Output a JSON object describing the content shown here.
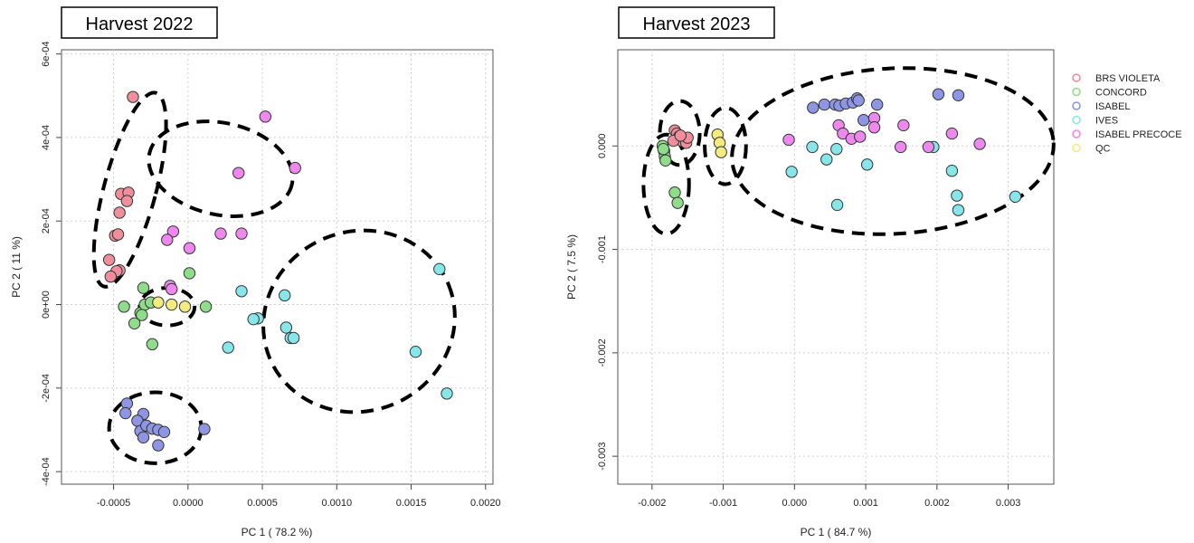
{
  "series_colors": {
    "BRS VIOLETA": "#f28e9b",
    "CONCORD": "#8fdc8a",
    "ISABEL": "#8e96e3",
    "IVES": "#87e6ea",
    "ISABEL PRECOCE": "#ee88ee",
    "QC": "#f3ea80"
  },
  "chart_data": [
    {
      "type": "scatter",
      "title": "Harvest 2022",
      "xlabel": "PC 1 ( 78.2 %)",
      "ylabel": "PC 2 ( 11 %)",
      "xlim": [
        -0.00085,
        0.00205
      ],
      "ylim": [
        -0.00043,
        0.00061
      ],
      "xticks": [
        -0.0005,
        0.0,
        0.0005,
        0.001,
        0.0015,
        0.002
      ],
      "xtick_labels": [
        "-0.0005",
        "0.0000",
        "0.0005",
        "0.0010",
        "0.0015",
        "0.0020"
      ],
      "yticks": [
        -0.0004,
        -0.0002,
        0.0,
        0.0002,
        0.0004,
        0.0006
      ],
      "ytick_labels": [
        "-4e-04",
        "-2e-04",
        "0e+00",
        "2e-04",
        "4e-04",
        "6e-04"
      ],
      "grid": true,
      "series": [
        {
          "name": "BRS VIOLETA",
          "points": [
            [
              -0.00037,
              0.000497
            ],
            [
              -0.00045,
              0.000265
            ],
            [
              -0.0004,
              0.000268
            ],
            [
              -0.00041,
              0.000248
            ],
            [
              -0.00046,
              0.00022
            ],
            [
              -0.00049,
              0.000165
            ],
            [
              -0.00047,
              0.000168
            ],
            [
              -0.00053,
              0.000107
            ],
            [
              -0.00046,
              8.2e-05
            ],
            [
              -0.00048,
              8e-05
            ],
            [
              -0.00052,
              6.7e-05
            ]
          ]
        },
        {
          "name": "CONCORD",
          "points": [
            [
              -0.0003,
              4e-05
            ],
            [
              -0.00043,
              -5e-06
            ],
            [
              -0.00032,
              -2e-05
            ],
            [
              -0.00029,
              0.0
            ],
            [
              -0.00031,
              -2.5e-05
            ],
            [
              -0.00036,
              -4.5e-05
            ],
            [
              -0.00025,
              5e-06
            ],
            [
              -0.00024,
              -9.5e-05
            ],
            [
              0.00012,
              -5e-06
            ],
            [
              1e-05,
              7.5e-05
            ]
          ]
        },
        {
          "name": "ISABEL",
          "points": [
            [
              -0.00041,
              -0.000237
            ],
            [
              -0.00042,
              -0.00026
            ],
            [
              -0.0003,
              -0.000262
            ],
            [
              -0.00034,
              -0.000278
            ],
            [
              -0.00032,
              -0.000303
            ],
            [
              -0.00028,
              -0.00029
            ],
            [
              -0.00024,
              -0.000297
            ],
            [
              -0.0002,
              -0.0003
            ],
            [
              -0.00016,
              -0.000305
            ],
            [
              -0.0003,
              -0.000318
            ],
            [
              -0.0002,
              -0.000337
            ],
            [
              0.00011,
              -0.000298
            ]
          ]
        },
        {
          "name": "IVES",
          "points": [
            [
              0.00036,
              3.2e-05
            ],
            [
              0.00065,
              2.2e-05
            ],
            [
              0.00047,
              -3.3e-05
            ],
            [
              0.00044,
              -3.5e-05
            ],
            [
              0.00066,
              -5.5e-05
            ],
            [
              0.00069,
              -8e-05
            ],
            [
              0.00071,
              -8e-05
            ],
            [
              0.00027,
              -0.000103
            ],
            [
              0.00153,
              -0.000113
            ],
            [
              0.00169,
              8.5e-05
            ],
            [
              0.00174,
              -0.000213
            ]
          ]
        },
        {
          "name": "ISABEL PRECOCE",
          "points": [
            [
              0.00052,
              0.00045
            ],
            [
              0.00034,
              0.000315
            ],
            [
              0.00072,
              0.000327
            ],
            [
              -0.0001,
              0.000175
            ],
            [
              -0.00014,
              0.000155
            ],
            [
              0.00022,
              0.00017
            ],
            [
              0.00036,
              0.00017
            ],
            [
              1e-05,
              0.000135
            ],
            [
              -0.00012,
              4.5e-05
            ],
            [
              -0.00011,
              3.7e-05
            ]
          ]
        },
        {
          "name": "QC",
          "points": [
            [
              -0.0002,
              5e-06
            ],
            [
              -0.00011,
              0.0
            ],
            [
              -2e-05,
              -5e-06
            ]
          ]
        }
      ],
      "ellipses": [
        {
          "cx": -0.00039,
          "cy": 0.000275,
          "rx": 0.000175,
          "ry": 0.00024,
          "rot": 15
        },
        {
          "cx": 0.00022,
          "cy": 0.000325,
          "rx": 0.00049,
          "ry": 0.00011,
          "rot": 12
        },
        {
          "cx": -0.00014,
          "cy": -5e-06,
          "rx": 0.000185,
          "ry": 4.5e-05,
          "rot": 0
        },
        {
          "cx": 0.00115,
          "cy": -4e-05,
          "rx": 0.00065,
          "ry": 0.000215,
          "rot": -22
        },
        {
          "cx": -0.00022,
          "cy": -0.000295,
          "rx": 0.00031,
          "ry": 8.5e-05,
          "rot": 0
        }
      ]
    },
    {
      "type": "scatter",
      "title": "Harvest 2023",
      "xlabel": "PC 1 ( 84.7 %)",
      "ylabel": "PC 2 ( 7.5 %)",
      "xlim": [
        -0.00248,
        0.00364
      ],
      "ylim": [
        -0.00327,
        0.00093
      ],
      "xticks": [
        -0.002,
        -0.001,
        0.0,
        0.001,
        0.002,
        0.003
      ],
      "xtick_labels": [
        "-0.002",
        "-0.001",
        "0.000",
        "0.001",
        "0.002",
        "0.003"
      ],
      "yticks": [
        -0.003,
        -0.002,
        -0.001,
        0.0
      ],
      "ytick_labels": [
        "-0.003",
        "-0.002",
        "-0.001",
        "0.000"
      ],
      "grid": true,
      "legend": {
        "position": "top-right",
        "entries": [
          "BRS VIOLETA",
          "CONCORD",
          "ISABEL",
          "IVES",
          "ISABEL PRECOCE",
          "QC"
        ]
      },
      "series": [
        {
          "name": "BRS VIOLETA",
          "points": [
            [
              -0.00168,
              0.00015
            ],
            [
              -0.00165,
              0.00012
            ],
            [
              -0.00162,
              9e-05
            ],
            [
              -0.00158,
              5e-05
            ],
            [
              -0.00152,
              3e-05
            ],
            [
              -0.0015,
              8e-05
            ],
            [
              -0.0017,
              5e-05
            ],
            [
              -0.0016,
              0.0001
            ]
          ]
        },
        {
          "name": "CONCORD",
          "points": [
            [
              -0.00185,
              0.0
            ],
            [
              -0.00183,
              -5e-05
            ],
            [
              -0.00182,
              -0.0001
            ],
            [
              -0.00181,
              -0.00014
            ],
            [
              -0.00184,
              -3e-05
            ],
            [
              -0.00168,
              -0.00045
            ],
            [
              -0.00164,
              -0.00055
            ]
          ]
        },
        {
          "name": "ISABEL",
          "points": [
            [
              0.00026,
              0.00037
            ],
            [
              0.00042,
              0.0004
            ],
            [
              0.00057,
              0.0004
            ],
            [
              0.00063,
              0.00039
            ],
            [
              0.00072,
              0.00041
            ],
            [
              0.00082,
              0.00042
            ],
            [
              0.00088,
              0.00046
            ],
            [
              0.0009,
              0.00044
            ],
            [
              0.00097,
              0.00025
            ],
            [
              0.00116,
              0.0004
            ],
            [
              0.00202,
              0.0005
            ],
            [
              0.0023,
              0.00049
            ]
          ]
        },
        {
          "name": "IVES",
          "points": [
            [
              -4e-05,
              -0.00025
            ],
            [
              0.00025,
              -1e-05
            ],
            [
              0.00045,
              -0.00013
            ],
            [
              0.00059,
              -3e-05
            ],
            [
              0.00102,
              -0.00018
            ],
            [
              0.00195,
              -1e-05
            ],
            [
              0.00221,
              -0.00024
            ],
            [
              0.00228,
              -0.00048
            ],
            [
              0.0023,
              -0.00062
            ],
            [
              0.0031,
              -0.00049
            ],
            [
              0.0006,
              -0.00057
            ]
          ]
        },
        {
          "name": "ISABEL PRECOCE",
          "points": [
            [
              -8e-05,
              6e-05
            ],
            [
              0.00062,
              0.0002
            ],
            [
              0.00068,
              0.00012
            ],
            [
              0.0008,
              7e-05
            ],
            [
              0.00092,
              9e-05
            ],
            [
              0.00112,
              0.00027
            ],
            [
              0.00112,
              0.00018
            ],
            [
              0.00153,
              0.0002
            ],
            [
              0.00149,
              -1e-05
            ],
            [
              0.00188,
              -1e-05
            ],
            [
              0.00221,
              0.00012
            ],
            [
              0.0026,
              2e-05
            ]
          ]
        },
        {
          "name": "QC",
          "points": [
            [
              -0.00108,
              0.00011
            ],
            [
              -0.00105,
              3e-05
            ],
            [
              -0.00103,
              -6e-05
            ]
          ]
        }
      ],
      "ellipses": [
        {
          "cx": -0.00161,
          "cy": 0.000125,
          "rx": 0.00028,
          "ry": 0.00031,
          "rot": 0
        },
        {
          "cx": -0.0018,
          "cy": -0.00037,
          "rx": 0.00032,
          "ry": 0.00048,
          "rot": 0
        },
        {
          "cx": -0.00097,
          "cy": 0.0,
          "rx": 0.00029,
          "ry": 0.00037,
          "rot": 0
        },
        {
          "cx": 0.00138,
          "cy": -5e-05,
          "rx": 0.00226,
          "ry": 0.0008,
          "rot": -3
        }
      ]
    }
  ]
}
